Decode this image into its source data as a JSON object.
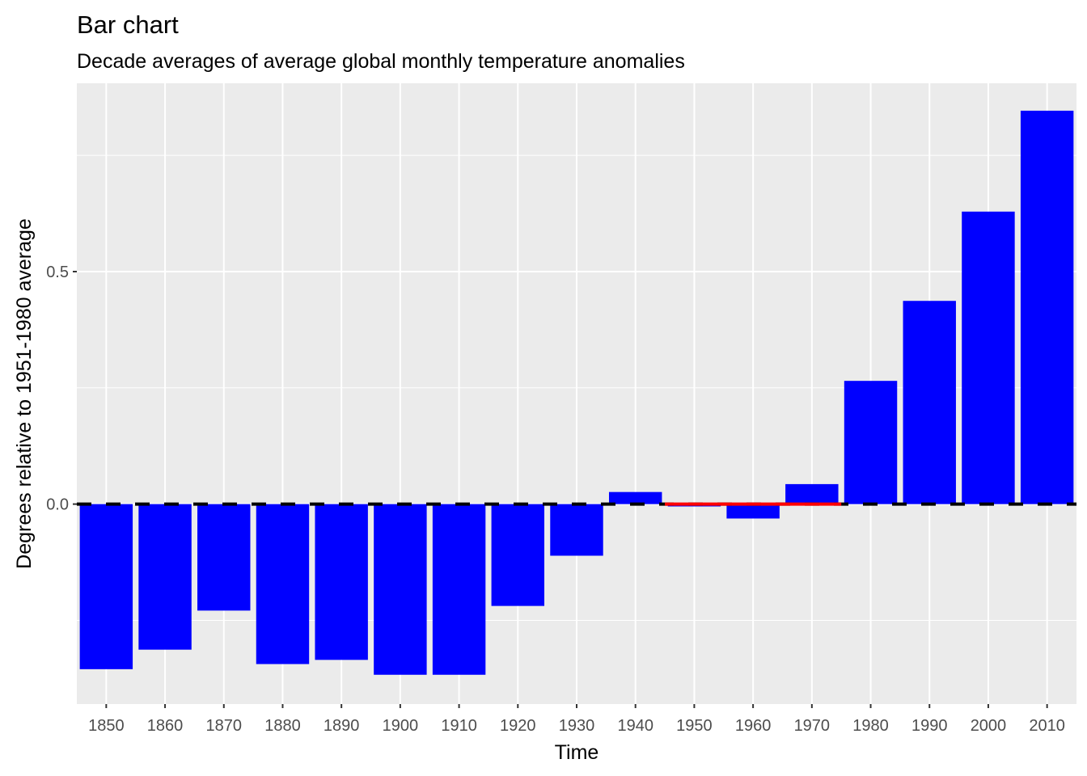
{
  "chart_data": {
    "type": "bar",
    "title": "Bar chart",
    "subtitle": "Decade averages of average global monthly temperature anomalies",
    "xlabel": "Time",
    "ylabel": "Degrees relative to 1951-1980 average",
    "categories": [
      "1850",
      "1860",
      "1870",
      "1880",
      "1890",
      "1900",
      "1910",
      "1920",
      "1930",
      "1940",
      "1950",
      "1960",
      "1970",
      "1980",
      "1990",
      "2000",
      "2010"
    ],
    "values": [
      -0.355,
      -0.313,
      -0.229,
      -0.344,
      -0.335,
      -0.367,
      -0.367,
      -0.219,
      -0.111,
      0.026,
      -0.005,
      -0.031,
      0.043,
      0.265,
      0.437,
      0.629,
      0.846
    ],
    "ylim": [
      -0.43,
      0.905
    ],
    "yticks": [
      0.0,
      0.5
    ],
    "ytick_labels": [
      "0.0",
      "0.5"
    ],
    "grid": true,
    "reference_lines": [
      {
        "label": "baseline",
        "from_category": "1850",
        "to_category": "2010",
        "value": 0,
        "color": "#000000",
        "style": "dashed"
      },
      {
        "label": "1951-1980 period",
        "from_category": "1950",
        "to_category": "1970",
        "value": 0,
        "color": "#ff0000",
        "style": "solid"
      }
    ],
    "colors": {
      "bar": "#0000ff",
      "panel_background": "#ebebeb",
      "grid": "#ffffff",
      "baseline": "#000000",
      "highlight": "#ff0000"
    }
  }
}
